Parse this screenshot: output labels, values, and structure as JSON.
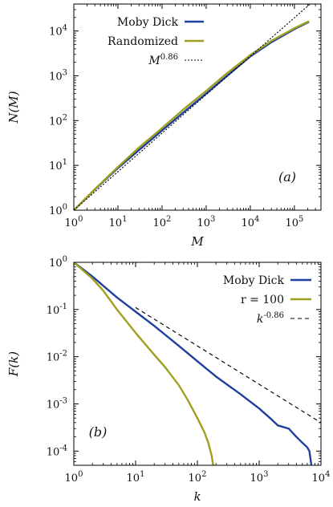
{
  "chart_data": [
    {
      "type": "line",
      "panel_label": "(a)",
      "xlabel": "M",
      "ylabel": "N(M)",
      "xscale": "log",
      "yscale": "log",
      "xlim": [
        1,
        400000
      ],
      "ylim": [
        1,
        40000
      ],
      "xticks": [
        1,
        10,
        100,
        1000,
        10000,
        100000
      ],
      "xtick_labels": [
        "10^0",
        "10^1",
        "10^2",
        "10^3",
        "10^4",
        "10^5"
      ],
      "yticks": [
        1,
        10,
        100,
        1000,
        10000
      ],
      "ytick_labels": [
        "10^0",
        "10^1",
        "10^2",
        "10^3",
        "10^4"
      ],
      "legend_position": "top-left",
      "series": [
        {
          "name": "Moby Dick",
          "color": "#1f3f9c",
          "style": "solid",
          "x": [
            1,
            3,
            10,
            30,
            100,
            300,
            1000,
            3000,
            10000,
            30000,
            100000,
            215000
          ],
          "y": [
            1,
            2.9,
            8.7,
            22,
            60,
            150,
            400,
            1000,
            2700,
            5600,
            11000,
            16000
          ]
        },
        {
          "name": "Randomized",
          "color": "#a0a020",
          "style": "solid",
          "x": [
            1,
            3,
            10,
            30,
            100,
            300,
            1000,
            3000,
            10000,
            30000,
            100000,
            215000
          ],
          "y": [
            1,
            2.95,
            9.2,
            25,
            68,
            175,
            460,
            1150,
            2900,
            6000,
            11500,
            16500
          ]
        },
        {
          "name": "M^0.86",
          "legend_base": "M",
          "legend_exponent": "0.86",
          "color": "#000000",
          "style": "dotted",
          "exponent": 0.86,
          "x": [
            1,
            400000
          ],
          "y": [
            1,
            65000
          ]
        }
      ]
    },
    {
      "type": "line",
      "panel_label": "(b)",
      "xlabel": "k",
      "ylabel": "F(k)",
      "xscale": "log",
      "yscale": "log",
      "xlim": [
        1,
        10000
      ],
      "ylim": [
        5e-05,
        1
      ],
      "xticks": [
        1,
        10,
        100,
        1000,
        10000
      ],
      "xtick_labels": [
        "10^0",
        "10^1",
        "10^2",
        "10^3",
        "10^4"
      ],
      "yticks": [
        1,
        0.1,
        0.01,
        0.001,
        0.0001
      ],
      "ytick_labels": [
        "10^0",
        "10^-1",
        "10^-2",
        "10^-3",
        "10^-4"
      ],
      "legend_position": "top-right",
      "series": [
        {
          "name": "Moby Dick",
          "color": "#1f3f9c",
          "style": "solid",
          "x": [
            1,
            2,
            5,
            10,
            20,
            50,
            100,
            200,
            500,
            1000,
            1500,
            2000,
            3000,
            4000,
            5000,
            6000,
            6500,
            7000
          ],
          "y": [
            1,
            0.5,
            0.18,
            0.09,
            0.045,
            0.017,
            0.008,
            0.0038,
            0.0016,
            0.0008,
            0.0005,
            0.00035,
            0.0003,
            0.0002,
            0.00015,
            0.00012,
            0.0001,
            5e-05
          ]
        },
        {
          "name": "r = 100",
          "color": "#a0a020",
          "style": "solid",
          "x": [
            1,
            2,
            3,
            5,
            10,
            20,
            30,
            50,
            70,
            100,
            130,
            150,
            170,
            180
          ],
          "y": [
            1,
            0.45,
            0.25,
            0.1,
            0.032,
            0.011,
            0.006,
            0.0025,
            0.0012,
            0.0005,
            0.00025,
            0.00015,
            8e-05,
            5e-05
          ]
        },
        {
          "name": "k^-0.86",
          "legend_base": "k",
          "legend_exponent": "-0.86",
          "color": "#000000",
          "style": "dashed",
          "exponent": -0.86,
          "x": [
            10,
            10000
          ],
          "y": [
            0.11,
            0.0004
          ]
        }
      ]
    }
  ]
}
